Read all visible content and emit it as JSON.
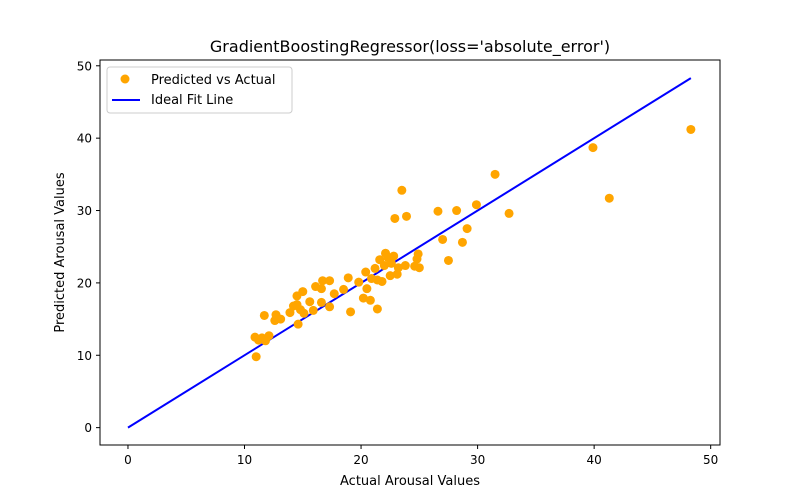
{
  "chart_data": {
    "type": "scatter",
    "title": "GradientBoostingRegressor(loss='absolute_error')",
    "xlabel": "Actual Arousal Values",
    "ylabel": "Predicted Arousal Values",
    "xlim": [
      -2.4,
      50.8
    ],
    "ylim": [
      -2.4,
      50.8
    ],
    "xticks": [
      0,
      10,
      20,
      30,
      40,
      50
    ],
    "yticks": [
      0,
      10,
      20,
      30,
      40,
      50
    ],
    "grid": false,
    "legend_position": "top-left",
    "series": [
      {
        "name": "Predicted vs Actual",
        "kind": "scatter",
        "color": "#ffa500",
        "points": [
          [
            10.9,
            12.5
          ],
          [
            11.0,
            9.8
          ],
          [
            11.2,
            12.1
          ],
          [
            11.5,
            12.4
          ],
          [
            11.7,
            15.5
          ],
          [
            11.8,
            12.0
          ],
          [
            12.1,
            12.7
          ],
          [
            12.6,
            14.8
          ],
          [
            12.7,
            15.6
          ],
          [
            13.1,
            15.0
          ],
          [
            13.9,
            15.9
          ],
          [
            14.2,
            16.8
          ],
          [
            14.5,
            17.0
          ],
          [
            14.5,
            18.2
          ],
          [
            14.6,
            14.3
          ],
          [
            14.8,
            16.3
          ],
          [
            15.0,
            18.8
          ],
          [
            15.1,
            15.8
          ],
          [
            15.6,
            17.4
          ],
          [
            15.9,
            16.2
          ],
          [
            16.1,
            19.5
          ],
          [
            16.6,
            19.2
          ],
          [
            16.7,
            20.3
          ],
          [
            16.6,
            17.3
          ],
          [
            17.3,
            20.3
          ],
          [
            17.3,
            16.7
          ],
          [
            17.7,
            18.5
          ],
          [
            18.5,
            19.1
          ],
          [
            18.9,
            20.7
          ],
          [
            19.1,
            16.0
          ],
          [
            19.8,
            20.1
          ],
          [
            20.2,
            17.9
          ],
          [
            20.4,
            21.5
          ],
          [
            20.5,
            19.2
          ],
          [
            20.8,
            17.6
          ],
          [
            20.9,
            20.6
          ],
          [
            21.2,
            22.0
          ],
          [
            21.4,
            20.4
          ],
          [
            21.4,
            16.4
          ],
          [
            21.6,
            23.2
          ],
          [
            21.8,
            20.2
          ],
          [
            22.0,
            22.4
          ],
          [
            22.1,
            24.1
          ],
          [
            22.3,
            23.5
          ],
          [
            22.5,
            21.0
          ],
          [
            22.6,
            22.7
          ],
          [
            22.8,
            23.7
          ],
          [
            22.9,
            28.9
          ],
          [
            23.1,
            21.2
          ],
          [
            23.2,
            22.1
          ],
          [
            23.5,
            32.8
          ],
          [
            23.8,
            22.4
          ],
          [
            23.9,
            29.2
          ],
          [
            24.6,
            22.3
          ],
          [
            24.8,
            23.3
          ],
          [
            24.9,
            24.0
          ],
          [
            25.0,
            22.1
          ],
          [
            26.6,
            29.9
          ],
          [
            27.0,
            26.0
          ],
          [
            27.5,
            23.1
          ],
          [
            28.2,
            30.0
          ],
          [
            28.7,
            25.6
          ],
          [
            29.1,
            27.5
          ],
          [
            29.9,
            30.8
          ],
          [
            31.5,
            35.0
          ],
          [
            32.7,
            29.6
          ],
          [
            39.9,
            38.7
          ],
          [
            41.3,
            31.7
          ],
          [
            48.3,
            41.2
          ]
        ]
      },
      {
        "name": "Ideal Fit Line",
        "kind": "line",
        "color": "#0000ff",
        "points": [
          [
            0,
            0
          ],
          [
            48.3,
            48.3
          ]
        ]
      }
    ]
  }
}
